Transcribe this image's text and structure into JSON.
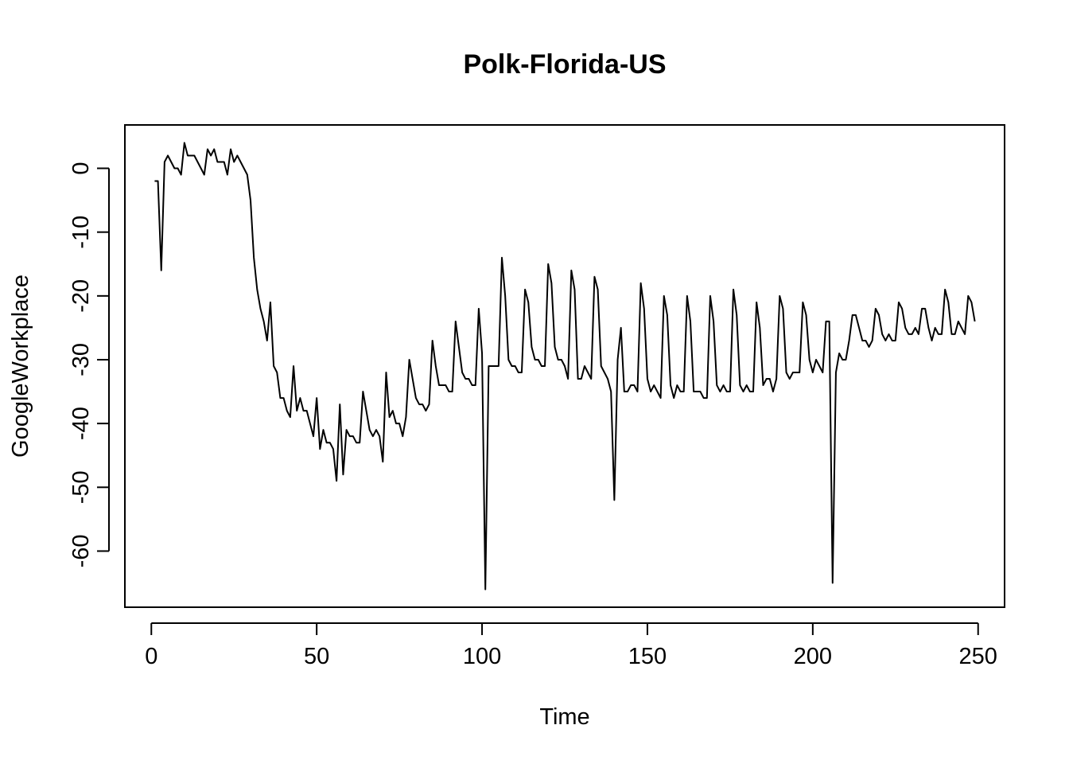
{
  "chart_data": {
    "type": "line",
    "title": "Polk-Florida-US",
    "xlabel": "Time",
    "ylabel": "GoogleWorkplace",
    "xlim": [
      -8,
      258
    ],
    "ylim": [
      -68.8,
      6.8
    ],
    "xticks": [
      0,
      50,
      100,
      150,
      200,
      250
    ],
    "yticks": [
      0,
      -10,
      -20,
      -30,
      -40,
      -50,
      -60
    ],
    "grid": false,
    "legend": "none",
    "line_color": "#000000",
    "series": [
      {
        "x_start": 1,
        "values": [
          -2,
          -2,
          -16,
          1,
          2,
          1,
          0,
          0,
          -1,
          4,
          2,
          2,
          2,
          1,
          0,
          -1,
          3,
          2,
          3,
          1,
          1,
          1,
          -1,
          3,
          1,
          2,
          1,
          0,
          -1,
          -5,
          -14,
          -19,
          -22,
          -24,
          -27,
          -21,
          -31,
          -32,
          -36,
          -36,
          -38,
          -39,
          -31,
          -38,
          -36,
          -38,
          -38,
          -40,
          -42,
          -36,
          -44,
          -41,
          -43,
          -43,
          -44,
          -49,
          -37,
          -48,
          -41,
          -42,
          -42,
          -43,
          -43,
          -35,
          -38,
          -41,
          -42,
          -41,
          -42,
          -46,
          -32,
          -39,
          -38,
          -40,
          -40,
          -42,
          -39,
          -30,
          -33,
          -36,
          -37,
          -37,
          -38,
          -37,
          -27,
          -31,
          -34,
          -34,
          -34,
          -35,
          -35,
          -24,
          -28,
          -32,
          -33,
          -33,
          -34,
          -34,
          -22,
          -29,
          -66,
          -31,
          -31,
          -31,
          -31,
          -14,
          -20,
          -30,
          -31,
          -31,
          -32,
          -32,
          -19,
          -21,
          -28,
          -30,
          -30,
          -31,
          -31,
          -15,
          -18,
          -28,
          -30,
          -30,
          -31,
          -33,
          -16,
          -19,
          -33,
          -33,
          -31,
          -32,
          -33,
          -17,
          -19,
          -31,
          -32,
          -33,
          -35,
          -52,
          -30,
          -25,
          -35,
          -35,
          -34,
          -34,
          -35,
          -18,
          -22,
          -33,
          -35,
          -34,
          -35,
          -36,
          -20,
          -23,
          -34,
          -36,
          -34,
          -35,
          -35,
          -20,
          -24,
          -35,
          -35,
          -35,
          -36,
          -36,
          -20,
          -24,
          -34,
          -35,
          -34,
          -35,
          -35,
          -19,
          -23,
          -34,
          -35,
          -34,
          -35,
          -35,
          -21,
          -25,
          -34,
          -33,
          -33,
          -35,
          -33,
          -20,
          -22,
          -32,
          -33,
          -32,
          -32,
          -32,
          -21,
          -23,
          -30,
          -32,
          -30,
          -31,
          -32,
          -24,
          -24,
          -65,
          -32,
          -29,
          -30,
          -30,
          -27,
          -23,
          -23,
          -25,
          -27,
          -27,
          -28,
          -27,
          -22,
          -23,
          -26,
          -27,
          -26,
          -27,
          -27,
          -21,
          -22,
          -25,
          -26,
          -26,
          -25,
          -26,
          -22,
          -22,
          -25,
          -27,
          -25,
          -26,
          -26,
          -19,
          -21,
          -26,
          -26,
          -24,
          -25,
          -26,
          -20,
          -21,
          -24
        ]
      }
    ]
  }
}
